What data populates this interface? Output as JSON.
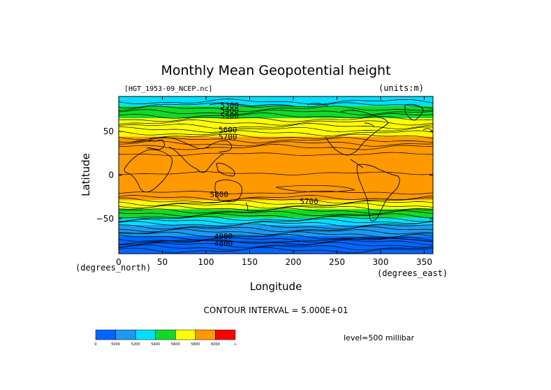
{
  "chart_data": {
    "type": "heatmap",
    "title": "Monthly Mean Geopotential height",
    "file_label": "[HGT_1953-09_NCEP.nc]",
    "units_label": "(units:m)",
    "xlabel": "Longitude",
    "ylabel": "Latitude",
    "x_unit_label": "(degrees_east)",
    "y_unit_label": "(degrees_north)",
    "xlim": [
      0,
      360
    ],
    "ylim": [
      -90,
      90
    ],
    "x_ticks": [
      {
        "value": 0,
        "label": "0"
      },
      {
        "value": 50,
        "label": "50"
      },
      {
        "value": 100,
        "label": "100"
      },
      {
        "value": 150,
        "label": "150"
      },
      {
        "value": 200,
        "label": "200"
      },
      {
        "value": 250,
        "label": "250"
      },
      {
        "value": 300,
        "label": "300"
      },
      {
        "value": 350,
        "label": "350"
      }
    ],
    "y_ticks": [
      {
        "value": 50,
        "label": "50"
      },
      {
        "value": 0,
        "label": "0"
      },
      {
        "value": -50,
        "label": "−50"
      }
    ],
    "contour_interval_text": "CONTOUR INTERVAL = 5.000E+01",
    "level_text": "level=500 millibar",
    "colorbar": {
      "boundaries": [
        "0",
        "5000",
        "5200",
        "5400",
        "5600",
        "5800",
        "6000",
        "∞"
      ],
      "colors": [
        "#0066ff",
        "#1a9af0",
        "#00e0ff",
        "#12d92a",
        "#ffff00",
        "#ff9900",
        "#ff0000"
      ]
    },
    "bands": [
      {
        "lat_top": 90,
        "lat_bottom": 79,
        "color": "#00e0ff"
      },
      {
        "lat_top": 79,
        "lat_bottom": 65,
        "color": "#12d92a"
      },
      {
        "lat_top": 65,
        "lat_bottom": 44,
        "color": "#ffff00"
      },
      {
        "lat_top": 44,
        "lat_bottom": -29,
        "color": "#ff9900"
      },
      {
        "lat_top": -29,
        "lat_bottom": -39,
        "color": "#ffff00"
      },
      {
        "lat_top": -39,
        "lat_bottom": -49,
        "color": "#12d92a"
      },
      {
        "lat_top": -49,
        "lat_bottom": -57,
        "color": "#00e0ff"
      },
      {
        "lat_top": -57,
        "lat_bottom": -70,
        "color": "#1a9af0"
      },
      {
        "lat_top": -70,
        "lat_bottom": -90,
        "color": "#0066ff"
      }
    ],
    "contour_labels": [
      {
        "lon": 127,
        "lat": 80,
        "text": "5300"
      },
      {
        "lon": 127,
        "lat": 74,
        "text": "5400"
      },
      {
        "lon": 127,
        "lat": 68,
        "text": "5500"
      },
      {
        "lon": 125,
        "lat": 52,
        "text": "5600"
      },
      {
        "lon": 125,
        "lat": 44,
        "text": "5700"
      },
      {
        "lon": 115,
        "lat": -22,
        "text": "5800"
      },
      {
        "lon": 218,
        "lat": -30,
        "text": "5700"
      },
      {
        "lon": 120,
        "lat": -70,
        "text": "4900"
      },
      {
        "lon": 120,
        "lat": -78,
        "text": "4800"
      }
    ]
  }
}
